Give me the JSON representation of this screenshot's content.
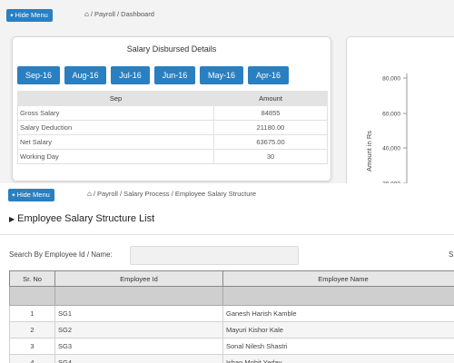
{
  "top_page": {
    "hide_menu_label": "Hide Menu",
    "breadcrumb": "/ Payroll / Dashboard",
    "salary_card": {
      "title": "Salary Disbursed Details",
      "months": [
        "Sep-16",
        "Aug-16",
        "Jul-16",
        "Jun-16",
        "May-16",
        "Apr-16"
      ],
      "selected_month": "Sep-16",
      "table_headers": [
        "Sep",
        "Amount"
      ],
      "rows": [
        {
          "label": "Gross Salary",
          "amount": "84855"
        },
        {
          "label": "Salary Deduction",
          "amount": "21180.00"
        },
        {
          "label": "Net Salary",
          "amount": "63675.00"
        },
        {
          "label": "Working Day",
          "amount": "30"
        }
      ]
    },
    "chart": {
      "ylabel": "Amount in Rs",
      "ticks": [
        "80,000",
        "60,000",
        "40,000",
        "20,000"
      ]
    }
  },
  "bottom_page": {
    "hide_menu_label": "Hide Menu",
    "breadcrumb": "/ Payroll / Salary Process / Employee Salary Structure",
    "section_title": "Employee Salary Structure List",
    "search_label": "Search By Employee Id / Name:",
    "search_value": "",
    "right_truncated": "S",
    "columns": [
      "Sr. No",
      "Employee Id",
      "Employee Name"
    ],
    "rows": [
      {
        "sr": "1",
        "id": "SG1",
        "name": "Ganesh Harish Kamble"
      },
      {
        "sr": "2",
        "id": "SG2",
        "name": "Mayuri Kishor Kale"
      },
      {
        "sr": "3",
        "id": "SG3",
        "name": "Sonal Nilesh Shastri"
      },
      {
        "sr": "4",
        "id": "SG4",
        "name": "Ishan Mohit Yadav"
      }
    ]
  },
  "colors": {
    "accent": "#2a7fc0",
    "header_gray": "#e3e3e3",
    "filter_gray": "#d0d0d0"
  }
}
